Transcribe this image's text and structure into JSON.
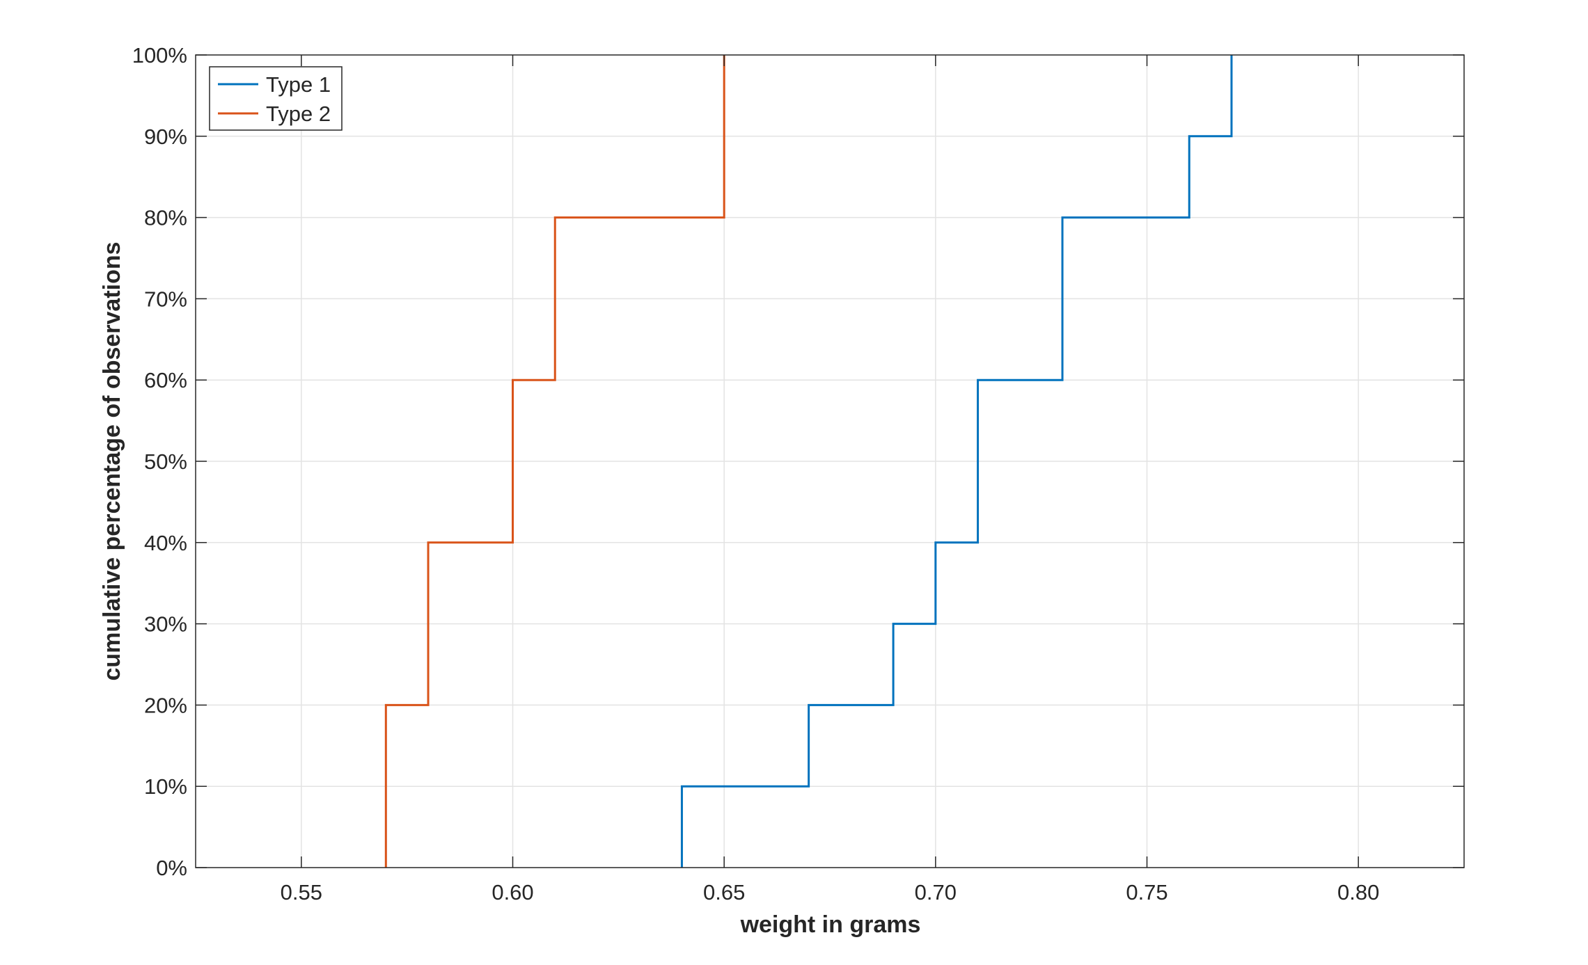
{
  "chart_data": {
    "type": "line",
    "title": "",
    "xlabel": "weight in grams",
    "ylabel": "cumulative percentage of observations",
    "xlim": [
      0.525,
      0.825
    ],
    "ylim": [
      0,
      100
    ],
    "x_ticks": [
      0.55,
      0.6,
      0.65,
      0.7,
      0.75,
      0.8
    ],
    "x_tick_labels": [
      "0.55",
      "0.60",
      "0.65",
      "0.70",
      "0.75",
      "0.80"
    ],
    "y_ticks": [
      0,
      10,
      20,
      30,
      40,
      50,
      60,
      70,
      80,
      90,
      100
    ],
    "y_tick_labels": [
      "0%",
      "10%",
      "20%",
      "30%",
      "40%",
      "50%",
      "60%",
      "70%",
      "80%",
      "90%",
      "100%"
    ],
    "grid": true,
    "legend_position": "top-left",
    "step": "post",
    "series": [
      {
        "name": "Type 1",
        "color": "#0072BD",
        "x": [
          0.64,
          0.67,
          0.69,
          0.7,
          0.71,
          0.73,
          0.76,
          0.77
        ],
        "y": [
          10,
          20,
          30,
          40,
          60,
          80,
          90,
          100
        ]
      },
      {
        "name": "Type 2",
        "color": "#D95319",
        "x": [
          0.57,
          0.58,
          0.6,
          0.61,
          0.65
        ],
        "y": [
          20,
          40,
          60,
          80,
          100
        ]
      }
    ]
  }
}
